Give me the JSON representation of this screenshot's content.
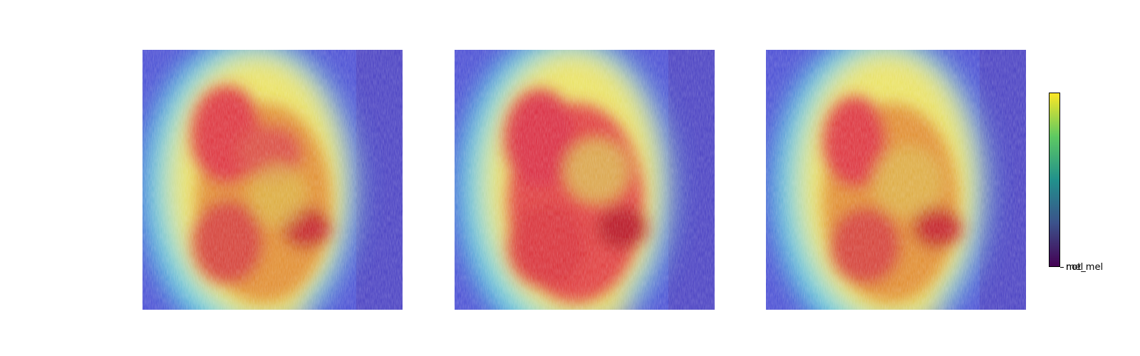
{
  "panels": [
    {
      "name": "heatmap-panel-1"
    },
    {
      "name": "heatmap-panel-2"
    },
    {
      "name": "heatmap-panel-3"
    }
  ],
  "colorbar": {
    "colormap": [
      "#440154",
      "#3b528b",
      "#21918c",
      "#5ec962",
      "#fde725"
    ],
    "tick_labels": [
      "mel",
      "not_mel"
    ]
  },
  "colors": {
    "background_blue": "#3d3fd0",
    "cyan": "#4fd6e0",
    "yellow": "#eee25a",
    "orange": "#e08a28",
    "red": "#dc2b35",
    "dark_red": "#b5101c"
  }
}
